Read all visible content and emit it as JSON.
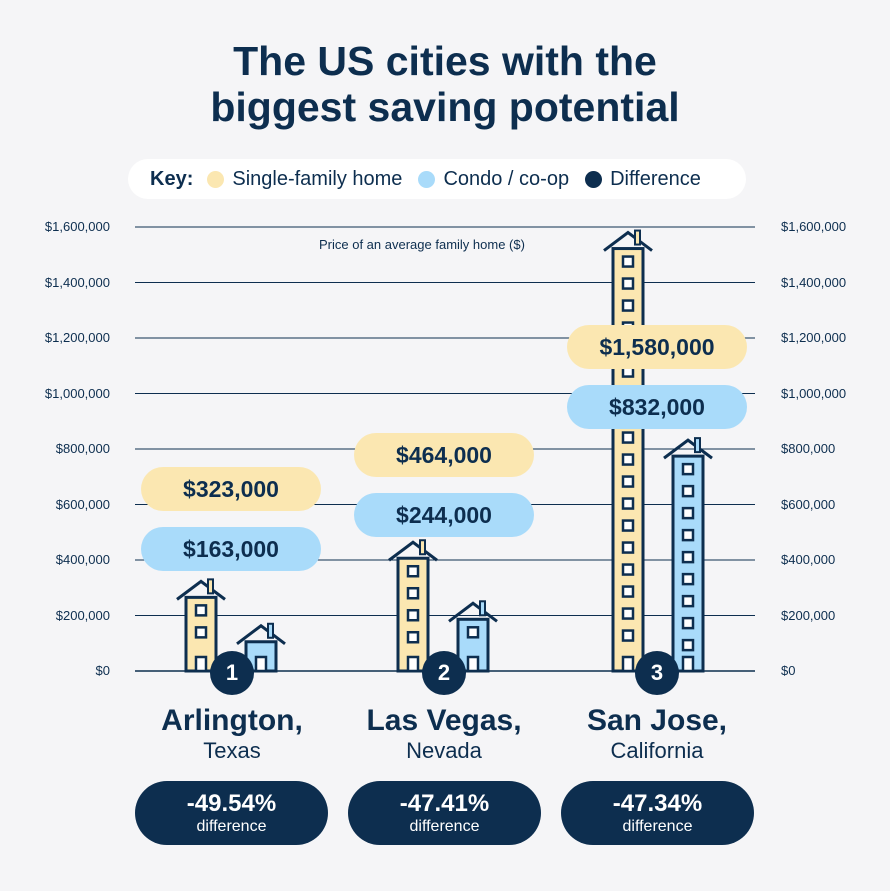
{
  "title_line1": "The US cities with the",
  "title_line2": "biggest saving potential",
  "legend": {
    "key_label": "Key:",
    "items": [
      {
        "label": "Single-family home",
        "color": "#fbe7b1"
      },
      {
        "label": "Condo / co-op",
        "color": "#a9dbfa"
      },
      {
        "label": "Difference",
        "color": "#0d2e4f"
      }
    ]
  },
  "chart_data": {
    "type": "bar",
    "title": "Price of an average family home ($)",
    "ylim": [
      0,
      1600000
    ],
    "yticks": [
      "$0",
      "$200,000",
      "$400,000",
      "$600,000",
      "$800,000",
      "$1,000,000",
      "$1,200,000",
      "$1,400,000",
      "$1,600,000"
    ],
    "categories": [
      "Arlington, Texas",
      "Las Vegas, Nevada",
      "San Jose, California"
    ],
    "series": [
      {
        "name": "Single-family home",
        "values": [
          323000,
          464000,
          1580000
        ],
        "labels": [
          "$323,000",
          "$464,000",
          "$1,580,000"
        ]
      },
      {
        "name": "Condo / co-op",
        "values": [
          163000,
          244000,
          832000
        ],
        "labels": [
          "$163,000",
          "$244,000",
          "$832,000"
        ]
      }
    ]
  },
  "cities": [
    {
      "rank": "1",
      "name": "Arlington,",
      "state": "Texas",
      "diff": "-49.54%",
      "diff_label": "difference"
    },
    {
      "rank": "2",
      "name": "Las Vegas,",
      "state": "Nevada",
      "diff": "-47.41%",
      "diff_label": "difference"
    },
    {
      "rank": "3",
      "name": "San Jose,",
      "state": "California",
      "diff": "-47.34%",
      "diff_label": "difference"
    }
  ]
}
